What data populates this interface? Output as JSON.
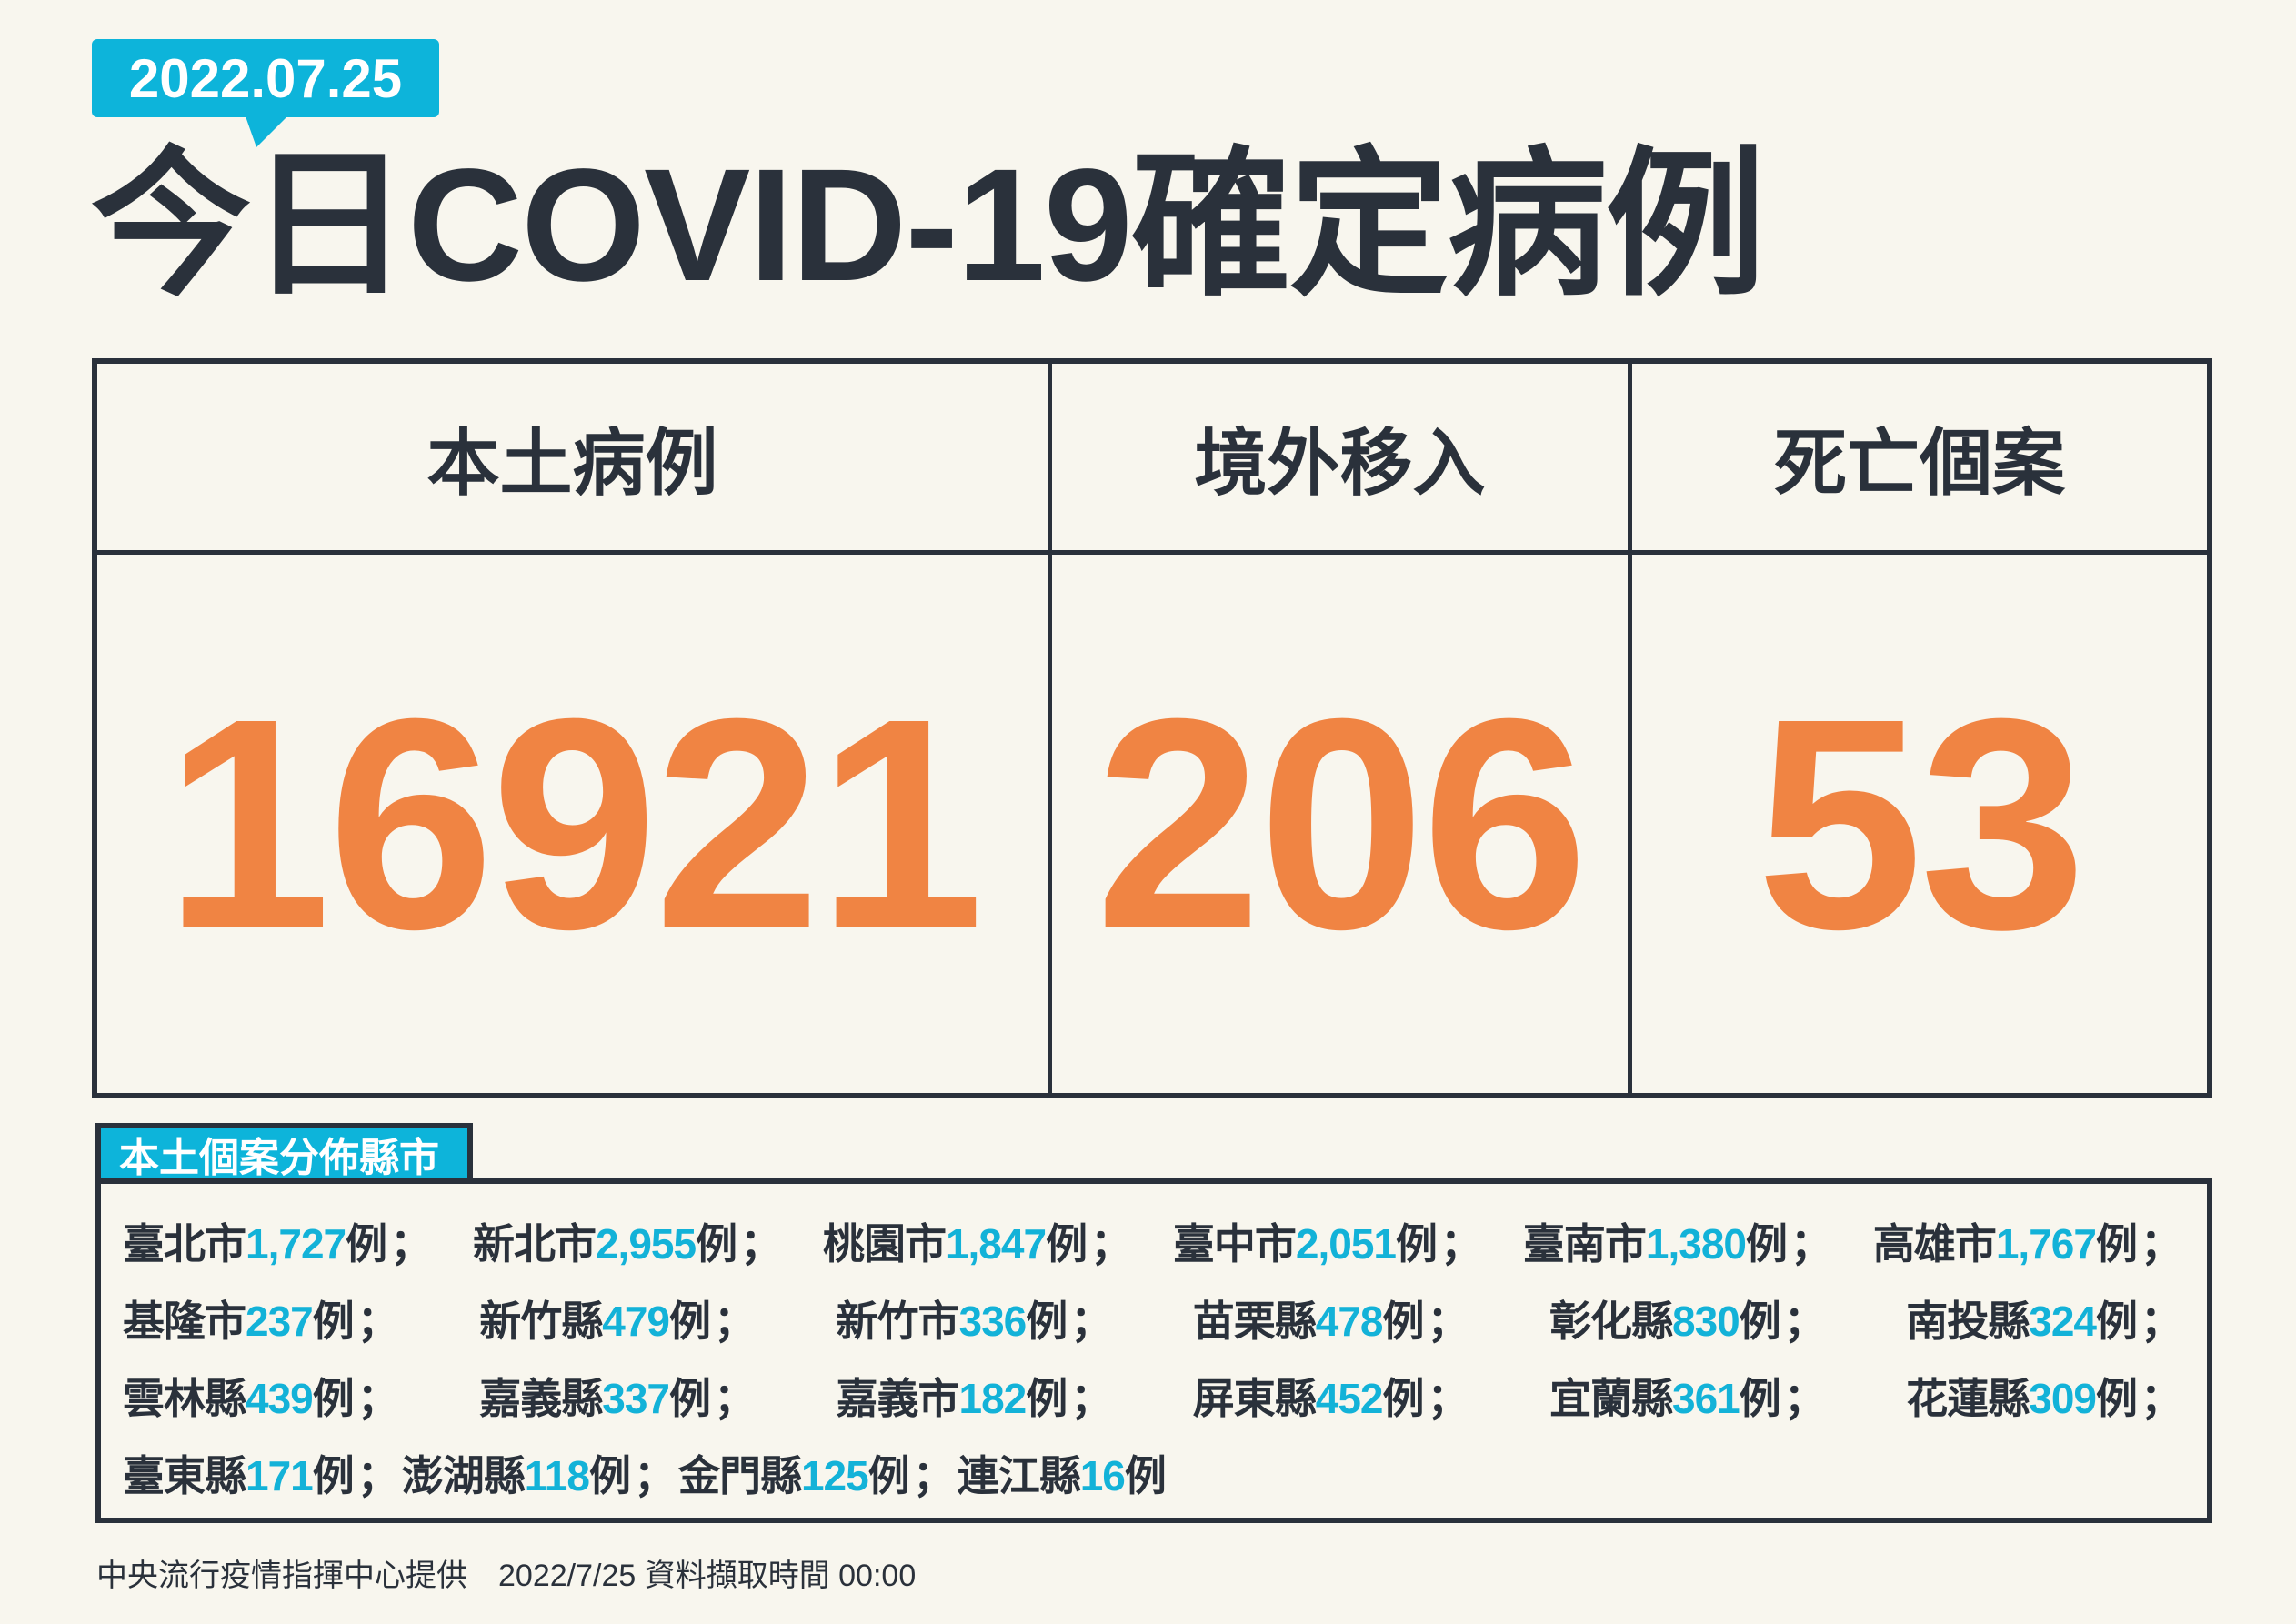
{
  "date_badge": "2022.07.25",
  "title": "今日COVID-19確定病例",
  "colors": {
    "accent_cyan": "#0db4da",
    "number_orange": "#f08443",
    "dark": "#2a313b",
    "background": "#f8f6ee"
  },
  "summary": {
    "columns": [
      {
        "label": "本土病例",
        "value": "16921"
      },
      {
        "label": "境外移入",
        "value": "206"
      },
      {
        "label": "死亡個案",
        "value": "53"
      }
    ]
  },
  "distribution": {
    "label": "本土個案分佈縣市",
    "unit": "例",
    "separator": "；",
    "rows": [
      [
        {
          "name": "臺北市",
          "count": "1,727"
        },
        {
          "name": "新北市",
          "count": "2,955"
        },
        {
          "name": "桃園市",
          "count": "1,847"
        },
        {
          "name": "臺中市",
          "count": "2,051"
        },
        {
          "name": "臺南市",
          "count": "1,380"
        },
        {
          "name": "高雄市",
          "count": "1,767"
        }
      ],
      [
        {
          "name": "基隆市",
          "count": "237"
        },
        {
          "name": "新竹縣",
          "count": "479"
        },
        {
          "name": "新竹市",
          "count": "336"
        },
        {
          "name": "苗栗縣",
          "count": "478"
        },
        {
          "name": "彰化縣",
          "count": "830"
        },
        {
          "name": "南投縣",
          "count": "324"
        }
      ],
      [
        {
          "name": "雲林縣",
          "count": "439"
        },
        {
          "name": "嘉義縣",
          "count": "337"
        },
        {
          "name": "嘉義市",
          "count": "182"
        },
        {
          "name": "屏東縣",
          "count": "452"
        },
        {
          "name": "宜蘭縣",
          "count": "361"
        },
        {
          "name": "花蓮縣",
          "count": "309"
        }
      ],
      [
        {
          "name": "臺東縣",
          "count": "171"
        },
        {
          "name": "澎湖縣",
          "count": "118"
        },
        {
          "name": "金門縣",
          "count": "125"
        },
        {
          "name": "連江縣",
          "count": "16"
        }
      ]
    ]
  },
  "footer": "中央流行疫情指揮中心提供　2022/7/25 資料擷取時間 00:00"
}
